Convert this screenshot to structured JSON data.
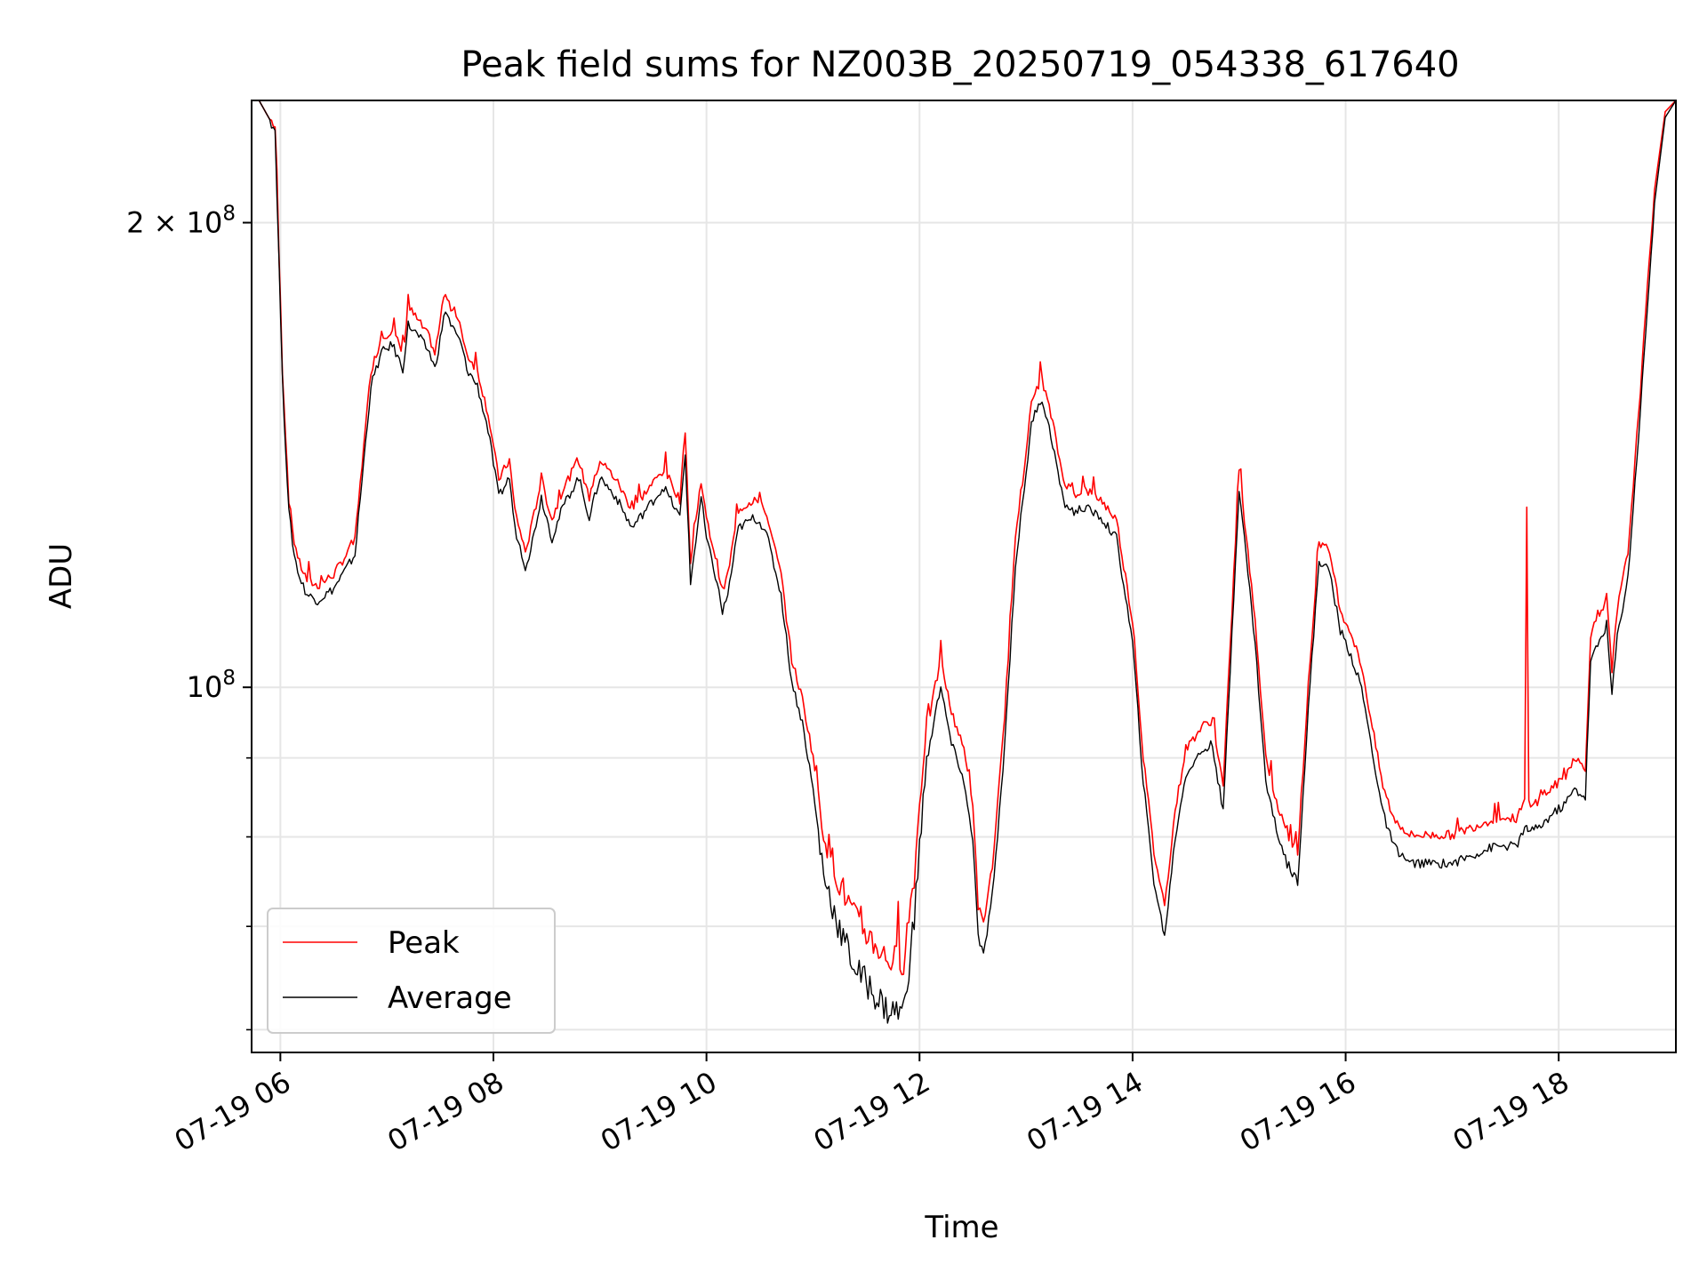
{
  "chart_data": {
    "type": "line",
    "title": "Peak field sums for NZ003B_20250719_054338_617640",
    "xlabel": "Time",
    "ylabel": "ADU",
    "y_scale": "log",
    "x_unit": "hours (07-19)",
    "xlim": [
      5.73,
      19.1
    ],
    "ylim": [
      58000000,
      240000000
    ],
    "x_ticks": [
      {
        "value": 6,
        "label": "07-19 06"
      },
      {
        "value": 8,
        "label": "07-19 08"
      },
      {
        "value": 10,
        "label": "07-19 10"
      },
      {
        "value": 12,
        "label": "07-19 12"
      },
      {
        "value": 14,
        "label": "07-19 14"
      },
      {
        "value": 16,
        "label": "07-19 16"
      },
      {
        "value": 18,
        "label": "07-19 18"
      }
    ],
    "y_ticks_major": [
      {
        "value": 100000000,
        "base": "10",
        "exp": "8",
        "coef": ""
      },
      {
        "value": 200000000,
        "base": "10",
        "exp": "8",
        "coef": "2 × "
      }
    ],
    "y_ticks_minor": [
      60000000,
      70000000,
      80000000,
      90000000
    ],
    "grid": true,
    "legend": {
      "position": "lower-left",
      "entries": [
        "Peak",
        "Average"
      ]
    },
    "colors": {
      "Peak": "#ff0000",
      "Average": "#000000",
      "grid": "#e6e6e6"
    },
    "series": [
      {
        "name": "Peak",
        "color": "#ff0000",
        "x": [
          5.73,
          5.8,
          5.95,
          6.02,
          6.08,
          6.13,
          6.18,
          6.25,
          6.35,
          6.5,
          6.7,
          6.85,
          6.95,
          7.05,
          7.15,
          7.2,
          7.3,
          7.4,
          7.45,
          7.55,
          7.6,
          7.7,
          7.75,
          7.85,
          7.95,
          8.05,
          8.15,
          8.2,
          8.3,
          8.35,
          8.45,
          8.55,
          8.65,
          8.8,
          8.9,
          9.0,
          9.15,
          9.3,
          9.45,
          9.6,
          9.75,
          9.8,
          9.85,
          9.95,
          10.0,
          10.1,
          10.15,
          10.2,
          10.3,
          10.45,
          10.55,
          10.7,
          10.8,
          10.9,
          11.0,
          11.1,
          11.25,
          11.4,
          11.55,
          11.7,
          11.85,
          11.95,
          12.05,
          12.1,
          12.15,
          12.2,
          12.3,
          12.4,
          12.5,
          12.55,
          12.6,
          12.7,
          12.8,
          12.9,
          13.0,
          13.05,
          13.1,
          13.15,
          13.25,
          13.35,
          13.45,
          13.55,
          13.7,
          13.85,
          14.0,
          14.1,
          14.2,
          14.3,
          14.4,
          14.5,
          14.65,
          14.75,
          14.85,
          15.0,
          15.05,
          15.15,
          15.25,
          15.35,
          15.45,
          15.55,
          15.65,
          15.75,
          15.85,
          15.95,
          16.05,
          16.15,
          16.25,
          16.35,
          16.45,
          16.6,
          16.8,
          17.0,
          17.2,
          17.4,
          17.6,
          17.68,
          17.7,
          17.72,
          17.8,
          17.95,
          18.05,
          18.15,
          18.25,
          18.3,
          18.35,
          18.45,
          18.5,
          18.55,
          18.65,
          18.75,
          18.9,
          19.0,
          19.1
        ],
        "y": [
          240000000,
          240000000,
          230000000,
          160000000,
          132000000,
          124000000,
          120000000,
          117000000,
          116000000,
          118000000,
          124000000,
          160000000,
          168000000,
          170000000,
          164000000,
          176000000,
          172000000,
          168000000,
          164000000,
          180000000,
          176000000,
          170000000,
          164000000,
          160000000,
          150000000,
          136000000,
          140000000,
          130000000,
          122000000,
          126000000,
          136000000,
          128000000,
          134000000,
          140000000,
          132000000,
          140000000,
          136000000,
          130000000,
          134000000,
          138000000,
          132000000,
          146000000,
          120000000,
          136000000,
          128000000,
          120000000,
          115000000,
          118000000,
          130000000,
          132000000,
          130000000,
          118000000,
          104000000,
          98000000,
          90000000,
          80000000,
          74000000,
          70000000,
          68000000,
          66000000,
          66000000,
          75000000,
          92000000,
          96000000,
          100000000,
          104000000,
          96000000,
          92000000,
          84000000,
          72000000,
          70000000,
          78000000,
          96000000,
          124000000,
          142000000,
          152000000,
          156000000,
          158000000,
          148000000,
          136000000,
          133000000,
          134000000,
          132000000,
          128000000,
          110000000,
          90000000,
          78000000,
          72000000,
          83000000,
          91000000,
          94000000,
          95000000,
          86000000,
          138000000,
          128000000,
          110000000,
          90000000,
          84000000,
          80000000,
          78000000,
          100000000,
          124000000,
          122000000,
          112000000,
          108000000,
          103000000,
          94000000,
          86000000,
          82000000,
          80000000,
          80000000,
          80000000,
          81000000,
          82000000,
          82000000,
          84000000,
          130000000,
          84000000,
          84000000,
          86000000,
          87000000,
          90000000,
          88000000,
          108000000,
          110000000,
          114000000,
          102000000,
          112000000,
          122000000,
          150000000,
          210000000,
          236000000,
          240000000
        ]
      },
      {
        "name": "Average",
        "color": "#000000",
        "x": [
          5.73,
          5.8,
          5.95,
          6.02,
          6.08,
          6.13,
          6.18,
          6.25,
          6.35,
          6.5,
          6.7,
          6.85,
          6.95,
          7.05,
          7.15,
          7.2,
          7.3,
          7.4,
          7.45,
          7.55,
          7.6,
          7.7,
          7.75,
          7.85,
          7.95,
          8.05,
          8.15,
          8.2,
          8.3,
          8.35,
          8.45,
          8.55,
          8.65,
          8.8,
          8.9,
          9.0,
          9.15,
          9.3,
          9.45,
          9.6,
          9.75,
          9.8,
          9.85,
          9.95,
          10.0,
          10.1,
          10.15,
          10.2,
          10.3,
          10.45,
          10.55,
          10.7,
          10.8,
          10.9,
          11.0,
          11.1,
          11.25,
          11.4,
          11.55,
          11.7,
          11.85,
          11.95,
          12.05,
          12.1,
          12.15,
          12.2,
          12.3,
          12.4,
          12.5,
          12.55,
          12.6,
          12.7,
          12.8,
          12.9,
          13.0,
          13.05,
          13.1,
          13.15,
          13.25,
          13.35,
          13.45,
          13.55,
          13.7,
          13.85,
          14.0,
          14.1,
          14.2,
          14.3,
          14.4,
          14.5,
          14.65,
          14.75,
          14.85,
          15.0,
          15.05,
          15.15,
          15.25,
          15.35,
          15.45,
          15.55,
          15.65,
          15.75,
          15.85,
          15.95,
          16.05,
          16.15,
          16.25,
          16.35,
          16.45,
          16.6,
          16.8,
          17.0,
          17.2,
          17.4,
          17.6,
          17.68,
          17.7,
          17.72,
          17.8,
          17.95,
          18.05,
          18.15,
          18.25,
          18.3,
          18.35,
          18.45,
          18.5,
          18.55,
          18.65,
          18.75,
          18.9,
          19.0,
          19.1
        ],
        "y": [
          240000000,
          240000000,
          230000000,
          158000000,
          130000000,
          122000000,
          118000000,
          115000000,
          114000000,
          116000000,
          122000000,
          157000000,
          165000000,
          167000000,
          161000000,
          172000000,
          169000000,
          165000000,
          161000000,
          176000000,
          172000000,
          167000000,
          161000000,
          157000000,
          147000000,
          133000000,
          137000000,
          127000000,
          120000000,
          123000000,
          133000000,
          125000000,
          131000000,
          137000000,
          129000000,
          137000000,
          133000000,
          127000000,
          131000000,
          135000000,
          129000000,
          142000000,
          117000000,
          133000000,
          125000000,
          117000000,
          112000000,
          115000000,
          127000000,
          129000000,
          127000000,
          115000000,
          101000000,
          95000000,
          86000000,
          76000000,
          70000000,
          66000000,
          64000000,
          62000000,
          62000000,
          71000000,
          88000000,
          92000000,
          97000000,
          100000000,
          92000000,
          88000000,
          80000000,
          69000000,
          67000000,
          75000000,
          92000000,
          120000000,
          138000000,
          148000000,
          152000000,
          154000000,
          144000000,
          132000000,
          130000000,
          131000000,
          129000000,
          125000000,
          107000000,
          87000000,
          75000000,
          69000000,
          80000000,
          88000000,
          91000000,
          92000000,
          83000000,
          135000000,
          125000000,
          107000000,
          87000000,
          81000000,
          77000000,
          75000000,
          97000000,
          121000000,
          119000000,
          109000000,
          105000000,
          100000000,
          91000000,
          83000000,
          79000000,
          77000000,
          77000000,
          77000000,
          78000000,
          79000000,
          79000000,
          81000000,
          81000000,
          81000000,
          81000000,
          83000000,
          84000000,
          86000000,
          85000000,
          104000000,
          106000000,
          110000000,
          99000000,
          108000000,
          118000000,
          146000000,
          206000000,
          234000000,
          240000000
        ]
      }
    ]
  }
}
